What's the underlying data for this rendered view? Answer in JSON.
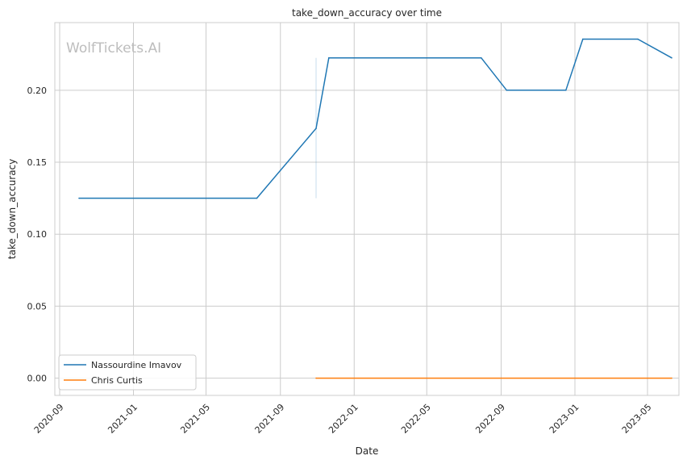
{
  "chart_data": {
    "type": "line",
    "title": "take_down_accuracy over time",
    "xlabel": "Date",
    "ylabel": "take_down_accuracy",
    "watermark": "WolfTickets.AI",
    "xlim": [
      "2020-08-24",
      "2023-06-22"
    ],
    "ylim": [
      -0.012,
      0.247
    ],
    "x_ticks": [
      "2020-09",
      "2021-01",
      "2021-05",
      "2021-09",
      "2022-01",
      "2022-05",
      "2022-09",
      "2023-01",
      "2023-05"
    ],
    "y_ticks": [
      "0.00",
      "0.05",
      "0.10",
      "0.15",
      "0.20"
    ],
    "y_tick_values": [
      0.0,
      0.05,
      0.1,
      0.15,
      0.2
    ],
    "grid": true,
    "legend_position": "lower-left",
    "series": [
      {
        "name": "Nassourdine Imavov",
        "color": "#1f77b4",
        "points": [
          {
            "x": "2020-10-03",
            "y": 0.125
          },
          {
            "x": "2021-07-24",
            "y": 0.125
          },
          {
            "x": "2021-10-30",
            "y": 0.1735
          },
          {
            "x": "2021-11-20",
            "y": 0.2225
          },
          {
            "x": "2022-07-30",
            "y": 0.2225
          },
          {
            "x": "2022-09-10",
            "y": 0.2
          },
          {
            "x": "2022-12-17",
            "y": 0.2
          },
          {
            "x": "2023-01-14",
            "y": 0.2355
          },
          {
            "x": "2023-04-15",
            "y": 0.2355
          },
          {
            "x": "2023-06-10",
            "y": 0.2225
          }
        ],
        "range_bars": [
          {
            "x": "2021-10-30",
            "low": 0.125,
            "high": 0.2225
          }
        ]
      },
      {
        "name": "Chris Curtis",
        "color": "#ff7f0e",
        "points": [
          {
            "x": "2021-10-30",
            "y": 0.0
          },
          {
            "x": "2023-06-10",
            "y": 0.0
          }
        ]
      }
    ]
  }
}
